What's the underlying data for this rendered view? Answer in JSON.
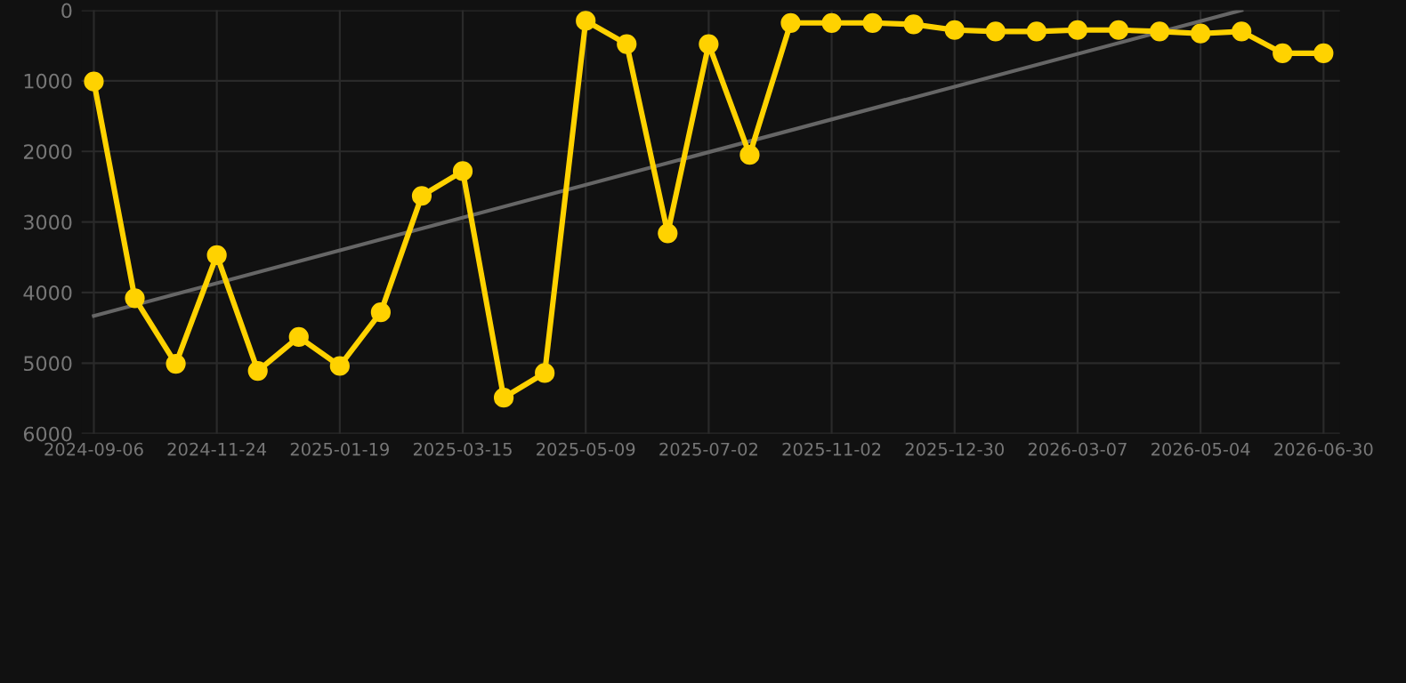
{
  "chart_data": {
    "type": "line",
    "categories": [
      "2024-09-06",
      null,
      null,
      "2024-11-24",
      null,
      null,
      "2025-01-19",
      null,
      null,
      "2025-03-15",
      null,
      null,
      "2025-05-09",
      null,
      null,
      "2025-07-02",
      null,
      null,
      "2025-11-02",
      null,
      null,
      "2025-12-30",
      null,
      null,
      "2026-03-07",
      null,
      null,
      "2026-05-04",
      null,
      null,
      "2026-06-30"
    ],
    "series": [
      {
        "color": "#ffd200",
        "marker": "circle",
        "values": [
          1010,
          4080,
          5010,
          3470,
          5110,
          4630,
          5040,
          4280,
          2630,
          2280,
          5490,
          5140,
          150,
          480,
          3160,
          480,
          2050,
          180,
          180,
          180,
          200,
          280,
          300,
          300,
          280,
          280,
          300,
          330,
          300,
          610,
          610
        ]
      },
      {
        "color": "#666666",
        "marker": "none",
        "values": [
          4330,
          null,
          null,
          null,
          null,
          null,
          null,
          null,
          null,
          null,
          null,
          null,
          null,
          null,
          null,
          null,
          null,
          null,
          null,
          null,
          null,
          null,
          null,
          null,
          null,
          null,
          null,
          null,
          0,
          null,
          null
        ]
      }
    ],
    "ylim": [
      6000,
      0
    ],
    "yticks": [
      0,
      1000,
      2000,
      3000,
      4000,
      5000,
      6000
    ],
    "grid": true
  }
}
